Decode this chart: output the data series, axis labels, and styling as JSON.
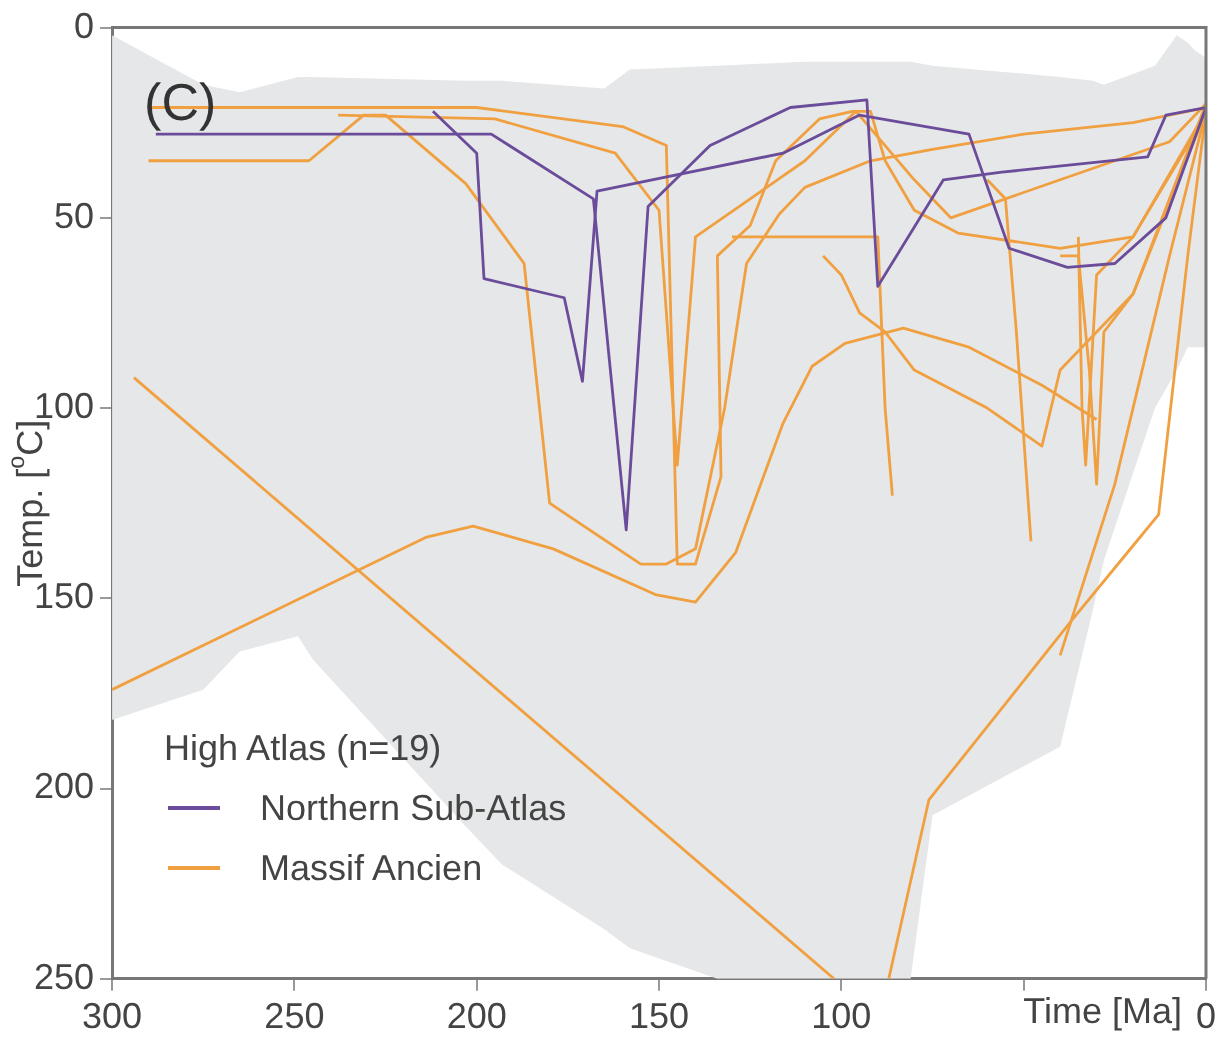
{
  "chart_data": {
    "type": "line",
    "xlabel": "Time [Ma]",
    "ylabel": "Temp. [$^{o}$C]",
    "legend_title": "High Atlas (n=19)",
    "legend": "bottom left",
    "annotations": [
      "(C)"
    ],
    "xlim": [
      300,
      0
    ],
    "xticks": [
      300,
      250,
      200,
      150,
      100,
      {
        "value": 50,
        "label": null
      },
      0
    ],
    "ylim": [
      250,
      0
    ],
    "yticks": [
      0,
      50,
      100,
      150,
      200,
      250
    ],
    "series": [
      {
        "type": "line",
        "color": "#e6e7e8",
        "x": [
          300,
          275,
          265,
          249,
          245,
          203,
          193,
          165,
          158,
          134,
          110,
          81,
          75,
          40,
          31,
          28,
          14,
          8,
          5,
          3,
          0
        ],
        "values": [
          null,
          null,
          null,
          null,
          null,
          null,
          null,
          null,
          null,
          null,
          null,
          null,
          null,
          null,
          null,
          null,
          null,
          null,
          null,
          null,
          null
        ],
        "lower": [
          2,
          15,
          17,
          13,
          13,
          14,
          14,
          16,
          11,
          10,
          9,
          9,
          10,
          13,
          14,
          15,
          10,
          2,
          4,
          6,
          8
        ],
        "upper": [
          182,
          174,
          164,
          160,
          166,
          210,
          220,
          237,
          242,
          250,
          250,
          250,
          207,
          189,
          153,
          140,
          100,
          90,
          84,
          84,
          84
        ]
      },
      {
        "name": "Northern Sub-Atlas",
        "color": "#6b4c9a",
        "x": [
          288,
          196,
          168,
          159,
          153,
          136,
          114,
          93,
          90,
          72,
          56,
          16,
          11,
          0
        ],
        "values": [
          28,
          28,
          45,
          132,
          47,
          31,
          21,
          19,
          68,
          40,
          38,
          34,
          23,
          21
        ]
      },
      {
        "color": "#6b4c9a",
        "x": [
          212,
          200,
          198,
          176,
          171,
          167,
          116,
          95,
          65,
          54,
          38,
          25,
          11,
          0
        ],
        "values": [
          22,
          33,
          66,
          71,
          93,
          43,
          33,
          23,
          28,
          58,
          63,
          62,
          50,
          21
        ]
      },
      {
        "name": "Massif Ancien",
        "color": "#f0a040",
        "x": [
          294,
          102
        ],
        "values": [
          92,
          250
        ]
      },
      {
        "color": "#f0a040",
        "x": [
          300,
          214,
          201,
          179,
          151,
          140,
          129,
          116,
          108,
          99,
          83,
          65,
          45,
          30
        ],
        "values": [
          174,
          134,
          131,
          137,
          149,
          151,
          138,
          104,
          89,
          83,
          79,
          84,
          94,
          103
        ]
      },
      {
        "color": "#f0a040",
        "x": [
          290,
          200,
          160,
          148,
          145,
          140,
          133,
          134,
          125,
          118,
          106,
          97,
          92,
          88,
          80,
          68,
          40,
          20,
          0
        ],
        "values": [
          21,
          21,
          26,
          31,
          141,
          141,
          118,
          60,
          52,
          35,
          24,
          22,
          22,
          35,
          48,
          54,
          58,
          55,
          22
        ]
      },
      {
        "color": "#f0a040",
        "x": [
          290,
          246,
          231,
          225,
          203,
          187,
          180,
          155,
          148,
          140,
          132,
          126,
          117,
          110,
          92,
          75,
          50,
          20,
          0
        ],
        "values": [
          35,
          35,
          23,
          23,
          41,
          62,
          125,
          141,
          141,
          137,
          100,
          62,
          49,
          42,
          35,
          32,
          28,
          25,
          21
        ]
      },
      {
        "color": "#f0a040",
        "x": [
          238,
          195,
          162,
          150,
          145,
          140,
          125,
          110,
          96,
          80,
          70,
          40,
          10,
          0
        ],
        "values": [
          23,
          24,
          33,
          48,
          115,
          55,
          45,
          35,
          22,
          40,
          50,
          40,
          30,
          20
        ]
      },
      {
        "color": "#f0a040",
        "x": [
          130,
          90,
          88,
          86
        ],
        "values": [
          55,
          55,
          100,
          123
        ]
      },
      {
        "color": "#f0a040",
        "x": [
          60,
          55,
          52,
          48
        ],
        "values": [
          40,
          45,
          80,
          135
        ]
      },
      {
        "color": "#f0a040",
        "x": [
          40,
          35,
          32,
          30,
          28,
          20,
          10,
          0
        ],
        "values": [
          60,
          60,
          90,
          120,
          80,
          70,
          45,
          20
        ]
      },
      {
        "color": "#f0a040",
        "x": [
          35,
          34,
          33,
          30,
          20,
          0
        ],
        "values": [
          55,
          100,
          115,
          65,
          55,
          23
        ]
      },
      {
        "color": "#f0a040",
        "x": [
          87,
          76,
          37,
          19,
          13,
          5,
          0
        ],
        "values": [
          250,
          203,
          156,
          135,
          128,
          60,
          22
        ]
      },
      {
        "color": "#f0a040",
        "x": [
          40,
          25,
          10,
          0
        ],
        "values": [
          165,
          120,
          60,
          22
        ]
      },
      {
        "color": "#f0a040",
        "x": [
          105,
          100,
          95,
          88,
          80,
          60,
          45,
          40,
          20,
          0
        ],
        "values": [
          60,
          65,
          75,
          80,
          90,
          100,
          110,
          90,
          70,
          22
        ]
      }
    ]
  }
}
